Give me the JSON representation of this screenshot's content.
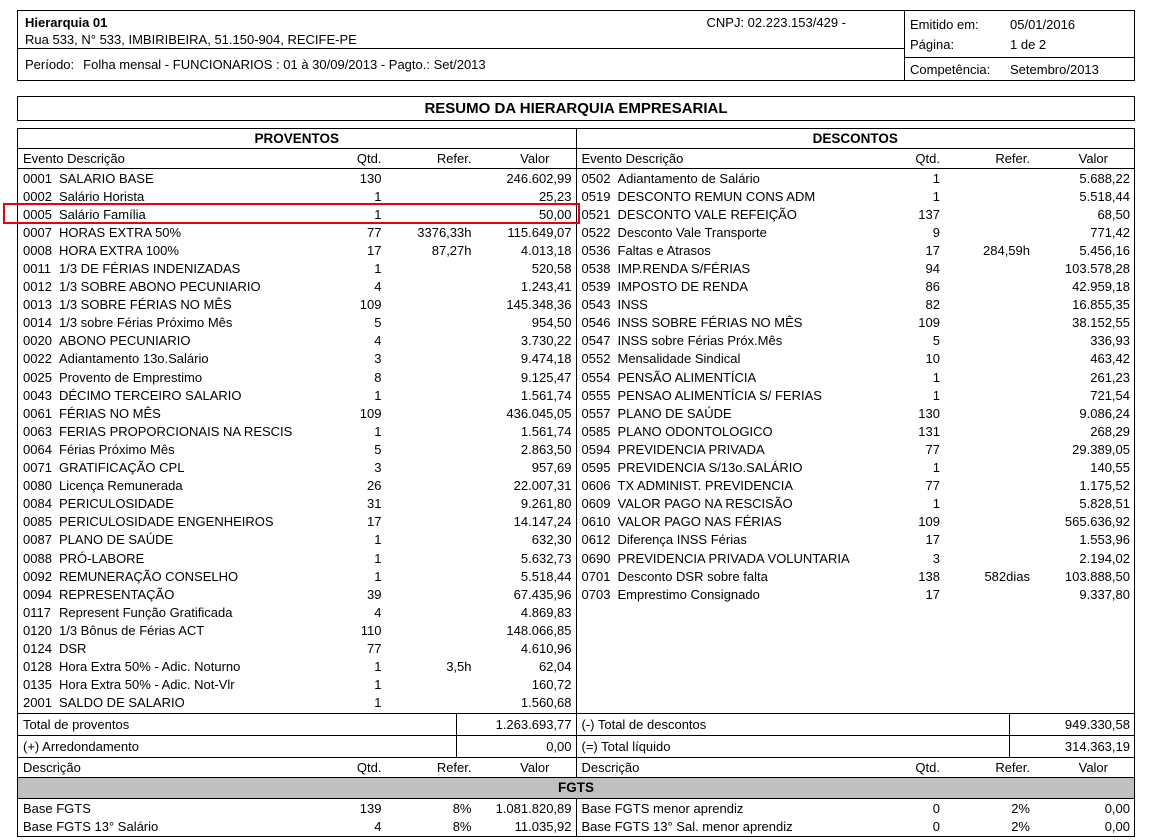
{
  "header": {
    "company": "Hierarquia 01",
    "cnpj": "CNPJ: 02.223.153/429 -",
    "address": "Rua 533, N° 533, IMBIRIBEIRA, 51.150-904, RECIFE-PE",
    "period_label": "Período:",
    "period_value": "Folha mensal - FUNCIONARIOS : 01 à 30/09/2013 - Pagto.: Set/2013",
    "emitted_label": "Emitido em:",
    "emitted_value": "05/01/2016",
    "page_label": "Página:",
    "page_value": "1 de 2",
    "competence_label": "Competência:",
    "competence_value": "Setembro/2013"
  },
  "title": "RESUMO DA HIERARQUIA EMPRESARIAL",
  "proventos": {
    "section_title": "PROVENTOS",
    "columns": {
      "desc": "Evento Descrição",
      "qtd": "Qtd.",
      "refer": "Refer.",
      "valor": "Valor"
    },
    "rows": [
      {
        "code": "0001",
        "desc": "SALARIO BASE",
        "qtd": "130",
        "refer": "",
        "valor": "246.602,99"
      },
      {
        "code": "0002",
        "desc": "Salário Horista",
        "qtd": "1",
        "refer": "",
        "valor": "25,23"
      },
      {
        "code": "0005",
        "desc": "Salário Família",
        "qtd": "1",
        "refer": "",
        "valor": "50,00",
        "_highlight": true
      },
      {
        "code": "0007",
        "desc": "HORAS EXTRA 50%",
        "qtd": "77",
        "refer": "3376,33h",
        "valor": "115.649,07"
      },
      {
        "code": "0008",
        "desc": "HORA EXTRA 100%",
        "qtd": "17",
        "refer": "87,27h",
        "valor": "4.013,18"
      },
      {
        "code": "0011",
        "desc": "1/3 DE FÉRIAS INDENIZADAS",
        "qtd": "1",
        "refer": "",
        "valor": "520,58"
      },
      {
        "code": "0012",
        "desc": "1/3 SOBRE ABONO PECUNIARIO",
        "qtd": "4",
        "refer": "",
        "valor": "1.243,41"
      },
      {
        "code": "0013",
        "desc": "1/3 SOBRE FÉRIAS NO MÊS",
        "qtd": "109",
        "refer": "",
        "valor": "145.348,36"
      },
      {
        "code": "0014",
        "desc": "1/3 sobre Férias Próximo Mês",
        "qtd": "5",
        "refer": "",
        "valor": "954,50"
      },
      {
        "code": "0020",
        "desc": "ABONO PECUNIARIO",
        "qtd": "4",
        "refer": "",
        "valor": "3.730,22"
      },
      {
        "code": "0022",
        "desc": "Adiantamento 13o.Salário",
        "qtd": "3",
        "refer": "",
        "valor": "9.474,18"
      },
      {
        "code": "0025",
        "desc": "Provento de Emprestimo",
        "qtd": "8",
        "refer": "",
        "valor": "9.125,47"
      },
      {
        "code": "0043",
        "desc": "DÉCIMO TERCEIRO SALARIO",
        "qtd": "1",
        "refer": "",
        "valor": "1.561,74"
      },
      {
        "code": "0061",
        "desc": "FÉRIAS NO MÊS",
        "qtd": "109",
        "refer": "",
        "valor": "436.045,05"
      },
      {
        "code": "0063",
        "desc": "FERIAS PROPORCIONAIS NA RESCIS",
        "qtd": "1",
        "refer": "",
        "valor": "1.561,74"
      },
      {
        "code": "0064",
        "desc": "Férias Próximo Mês",
        "qtd": "5",
        "refer": "",
        "valor": "2.863,50"
      },
      {
        "code": "0071",
        "desc": "GRATIFICAÇÃO CPL",
        "qtd": "3",
        "refer": "",
        "valor": "957,69"
      },
      {
        "code": "0080",
        "desc": "Licença Remunerada",
        "qtd": "26",
        "refer": "",
        "valor": "22.007,31"
      },
      {
        "code": "0084",
        "desc": "PERICULOSIDADE",
        "qtd": "31",
        "refer": "",
        "valor": "9.261,80"
      },
      {
        "code": "0085",
        "desc": "PERICULOSIDADE ENGENHEIROS",
        "qtd": "17",
        "refer": "",
        "valor": "14.147,24"
      },
      {
        "code": "0087",
        "desc": "PLANO DE SAÚDE",
        "qtd": "1",
        "refer": "",
        "valor": "632,30"
      },
      {
        "code": "0088",
        "desc": "PRÓ-LABORE",
        "qtd": "1",
        "refer": "",
        "valor": "5.632,73"
      },
      {
        "code": "0092",
        "desc": "REMUNERAÇÃO CONSELHO",
        "qtd": "1",
        "refer": "",
        "valor": "5.518,44"
      },
      {
        "code": "0094",
        "desc": "REPRESENTAÇÃO",
        "qtd": "39",
        "refer": "",
        "valor": "67.435,96"
      },
      {
        "code": "0117",
        "desc": "Represent Função Gratificada",
        "qtd": "4",
        "refer": "",
        "valor": "4.869,83"
      },
      {
        "code": "0120",
        "desc": "1/3 Bônus de Férias ACT",
        "qtd": "110",
        "refer": "",
        "valor": "148.066,85"
      },
      {
        "code": "0124",
        "desc": "DSR",
        "qtd": "77",
        "refer": "",
        "valor": "4.610,96"
      },
      {
        "code": "0128",
        "desc": "Hora Extra 50% - Adic. Noturno",
        "qtd": "1",
        "refer": "3,5h",
        "valor": "62,04"
      },
      {
        "code": "0135",
        "desc": "Hora Extra 50% - Adic. Not-Vlr",
        "qtd": "1",
        "refer": "",
        "valor": "160,72"
      },
      {
        "code": "2001",
        "desc": "SALDO DE SALARIO",
        "qtd": "1",
        "refer": "",
        "valor": "1.560,68"
      }
    ],
    "totals": [
      {
        "label": "Total de proventos",
        "value": "1.263.693,77"
      },
      {
        "label": "(+) Arredondamento",
        "value": "0,00"
      }
    ]
  },
  "descontos": {
    "section_title": "DESCONTOS",
    "columns": {
      "desc": "Evento Descrição",
      "qtd": "Qtd.",
      "refer": "Refer.",
      "valor": "Valor"
    },
    "rows": [
      {
        "code": "0502",
        "desc": "Adiantamento de Salário",
        "qtd": "1",
        "refer": "",
        "valor": "5.688,22"
      },
      {
        "code": "0519",
        "desc": "DESCONTO REMUN CONS ADM",
        "qtd": "1",
        "refer": "",
        "valor": "5.518,44"
      },
      {
        "code": "0521",
        "desc": "DESCONTO VALE REFEIÇÃO",
        "qtd": "137",
        "refer": "",
        "valor": "68,50"
      },
      {
        "code": "0522",
        "desc": "Desconto Vale Transporte",
        "qtd": "9",
        "refer": "",
        "valor": "771,42"
      },
      {
        "code": "0536",
        "desc": "Faltas e Atrasos",
        "qtd": "17",
        "refer": "284,59h",
        "valor": "5.456,16"
      },
      {
        "code": "0538",
        "desc": "IMP.RENDA S/FÉRIAS",
        "qtd": "94",
        "refer": "",
        "valor": "103.578,28"
      },
      {
        "code": "0539",
        "desc": "IMPOSTO DE RENDA",
        "qtd": "86",
        "refer": "",
        "valor": "42.959,18"
      },
      {
        "code": "0543",
        "desc": "INSS",
        "qtd": "82",
        "refer": "",
        "valor": "16.855,35"
      },
      {
        "code": "0546",
        "desc": "INSS SOBRE FÉRIAS NO MÊS",
        "qtd": "109",
        "refer": "",
        "valor": "38.152,55"
      },
      {
        "code": "0547",
        "desc": "INSS sobre Férias Próx.Mês",
        "qtd": "5",
        "refer": "",
        "valor": "336,93"
      },
      {
        "code": "0552",
        "desc": "Mensalidade Sindical",
        "qtd": "10",
        "refer": "",
        "valor": "463,42"
      },
      {
        "code": "0554",
        "desc": "PENSÃO ALIMENTÍCIA",
        "qtd": "1",
        "refer": "",
        "valor": "261,23"
      },
      {
        "code": "0555",
        "desc": "PENSAO ALIMENTÍCIA S/ FERIAS",
        "qtd": "1",
        "refer": "",
        "valor": "721,54"
      },
      {
        "code": "0557",
        "desc": "PLANO DE SAÚDE",
        "qtd": "130",
        "refer": "",
        "valor": "9.086,24"
      },
      {
        "code": "0585",
        "desc": "PLANO ODONTOLOGICO",
        "qtd": "131",
        "refer": "",
        "valor": "268,29"
      },
      {
        "code": "0594",
        "desc": "PREVIDENCIA PRIVADA",
        "qtd": "77",
        "refer": "",
        "valor": "29.389,05"
      },
      {
        "code": "0595",
        "desc": "PREVIDENCIA S/13o.SALÁRIO",
        "qtd": "1",
        "refer": "",
        "valor": "140,55"
      },
      {
        "code": "0606",
        "desc": "TX ADMINIST. PREVIDENCIA",
        "qtd": "77",
        "refer": "",
        "valor": "1.175,52"
      },
      {
        "code": "0609",
        "desc": "VALOR PAGO NA RESCISÃO",
        "qtd": "1",
        "refer": "",
        "valor": "5.828,51"
      },
      {
        "code": "0610",
        "desc": "VALOR PAGO NAS FÉRIAS",
        "qtd": "109",
        "refer": "",
        "valor": "565.636,92"
      },
      {
        "code": "0612",
        "desc": "Diferença INSS Férias",
        "qtd": "17",
        "refer": "",
        "valor": "1.553,96"
      },
      {
        "code": "0690",
        "desc": "PREVIDENCIA PRIVADA VOLUNTARIA",
        "qtd": "3",
        "refer": "",
        "valor": "2.194,02"
      },
      {
        "code": "0701",
        "desc": "Desconto DSR sobre falta",
        "qtd": "138",
        "refer": "582dias",
        "valor": "103.888,50"
      },
      {
        "code": "0703",
        "desc": "Emprestimo Consignado",
        "qtd": "17",
        "refer": "",
        "valor": "9.337,80"
      }
    ],
    "totals": [
      {
        "label": "(-) Total de descontos",
        "value": "949.330,58"
      },
      {
        "label": "(=) Total líquido",
        "value": "314.363,19"
      }
    ]
  },
  "fgts": {
    "band_title": "FGTS",
    "columns": {
      "desc": "Descrição",
      "qtd": "Qtd.",
      "refer": "Refer.",
      "valor": "Valor"
    },
    "left_rows": [
      {
        "desc": "Base FGTS",
        "qtd": "139",
        "refer": "8%",
        "valor": "1.081.820,89"
      },
      {
        "desc": "Base FGTS 13° Salário",
        "qtd": "4",
        "refer": "8%",
        "valor": "11.035,92"
      }
    ],
    "right_rows": [
      {
        "desc": "Base FGTS menor aprendiz",
        "qtd": "0",
        "refer": "2%",
        "valor": "0,00"
      },
      {
        "desc": "Base FGTS 13° Sal. menor aprendiz",
        "qtd": "0",
        "refer": "2%",
        "valor": "0,00"
      }
    ]
  },
  "colors": {
    "highlight_box": "#e8000d",
    "fgts_band_bg": "#c0c0c0"
  }
}
